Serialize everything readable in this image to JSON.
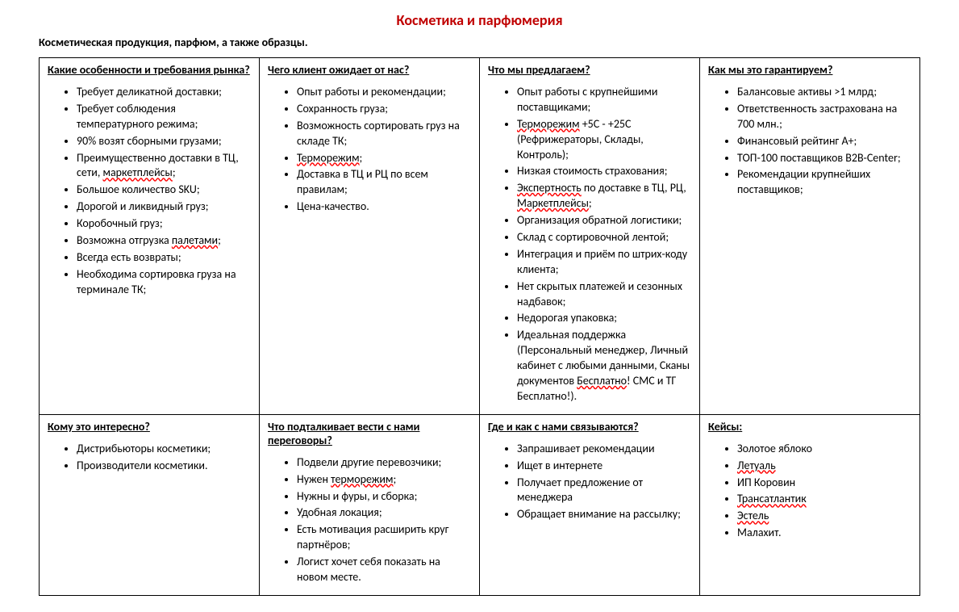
{
  "title": "Косметика и парфюмерия",
  "subtitle": "Косметическая продукция, парфюм, а также образцы.",
  "colors": {
    "title": "#c00000",
    "border": "#000000",
    "text": "#000000",
    "spellcheck_underline": "#ff0000"
  },
  "table": {
    "rows": [
      {
        "cells": [
          {
            "header": "Какие особенности и требования рынка?",
            "items": [
              [
                {
                  "t": "Требует деликатной доставки;"
                }
              ],
              [
                {
                  "t": "Требует соблюдения температурного режима;"
                }
              ],
              [
                {
                  "t": "90% возят сборными грузами;"
                }
              ],
              [
                {
                  "t": "Преимущественно доставки в ТЦ, сети, "
                },
                {
                  "t": "маркетплейсы",
                  "spell": true
                },
                {
                  "t": ";"
                }
              ],
              [
                {
                  "t": "Большое количество SKU;"
                }
              ],
              [
                {
                  "t": "Дорогой и ликвидный груз;"
                }
              ],
              [
                {
                  "t": "Коробочный груз;"
                }
              ],
              [
                {
                  "t": "Возможна отгрузка "
                },
                {
                  "t": "палетами",
                  "spell": true
                },
                {
                  "t": ";"
                }
              ],
              [
                {
                  "t": "Всегда есть возвраты;"
                }
              ],
              [
                {
                  "t": "Необходима сортировка груза на терминале ТК;"
                }
              ]
            ]
          },
          {
            "header": "Чего клиент ожидает от нас?",
            "items": [
              [
                {
                  "t": "Опыт работы и рекомендации;"
                }
              ],
              [
                {
                  "t": "Сохранность груза;"
                }
              ],
              [
                {
                  "t": "Возможность сортировать груз на складе ТК;"
                }
              ],
              [
                {
                  "t": "Терморежим",
                  "spell": true
                },
                {
                  "t": ";"
                }
              ],
              [
                {
                  "t": "Доставка в ТЦ и РЦ по всем правилам;"
                }
              ],
              [
                {
                  "t": "Цена-качество."
                }
              ]
            ]
          },
          {
            "header": "Что мы предлагаем?",
            "items": [
              [
                {
                  "t": "Опыт работы с крупнейшими поставщиками;"
                }
              ],
              [
                {
                  "t": "Терморежим",
                  "spell": true
                },
                {
                  "t": " +5С - +25С (Рефрижераторы, Склады, Контроль);"
                }
              ],
              [
                {
                  "t": "Низкая стоимость страхования;"
                }
              ],
              [
                {
                  "t": "Экспертность",
                  "spell": true
                },
                {
                  "t": " по доставке в ТЦ, РЦ, "
                },
                {
                  "t": "Маркетплейсы",
                  "spell": true
                },
                {
                  "t": ";"
                }
              ],
              [
                {
                  "t": "Организация обратной логистики;"
                }
              ],
              [
                {
                  "t": "Склад с сортировочной лентой;"
                }
              ],
              [
                {
                  "t": "Интеграция и приём по штрих-коду клиента;"
                }
              ],
              [
                {
                  "t": "Нет скрытых платежей и сезонных надбавок;"
                }
              ],
              [
                {
                  "t": "Недорогая упаковка;"
                }
              ],
              [
                {
                  "t": "Идеальная поддержка (Персональный менеджер, Личный кабинет с любыми данными, Сканы документов "
                },
                {
                  "t": "Бесплатно",
                  "spell": true
                },
                {
                  "t": "! СМС и ТГ Бесплатно!)."
                }
              ]
            ]
          },
          {
            "header": "Как мы это гарантируем?",
            "items": [
              [
                {
                  "t": "Балансовые активы >1 млрд;"
                }
              ],
              [
                {
                  "t": "Ответственность застрахована на 700 млн.;"
                }
              ],
              [
                {
                  "t": "Финансовый рейтинг А+;"
                }
              ],
              [
                {
                  "t": "ТОП-100 поставщиков B2B-Center;"
                }
              ],
              [
                {
                  "t": "Рекомендации крупнейших поставщиков;"
                }
              ]
            ]
          }
        ]
      },
      {
        "cells": [
          {
            "header": "Кому это интересно?",
            "items": [
              [
                {
                  "t": "Дистрибьюторы косметики;"
                }
              ],
              [
                {
                  "t": "Производители косметики."
                }
              ]
            ]
          },
          {
            "header": "Что подталкивает вести с нами переговоры?",
            "items": [
              [
                {
                  "t": "Подвели другие перевозчики;"
                }
              ],
              [
                {
                  "t": "Нужен "
                },
                {
                  "t": "терморежим",
                  "spell": true
                },
                {
                  "t": ";"
                }
              ],
              [
                {
                  "t": "Нужны и фуры, и сборка;"
                }
              ],
              [
                {
                  "t": "Удобная локация;"
                }
              ],
              [
                {
                  "t": "Есть мотивация расширить круг партнёров;"
                }
              ],
              [
                {
                  "t": "Логист хочет себя показать на новом месте."
                }
              ]
            ]
          },
          {
            "header": "Где и как с нами связываются?",
            "items": [
              [
                {
                  "t": "Запрашивает рекомендации"
                }
              ],
              [
                {
                  "t": "Ищет в интернете"
                }
              ],
              [
                {
                  "t": "Получает предложение от менеджера"
                }
              ],
              [
                {
                  "t": "Обращает внимание на рассылку;"
                }
              ]
            ]
          },
          {
            "header": "Кейсы:",
            "items": [
              [
                {
                  "t": "Золотое яблоко"
                }
              ],
              [
                {
                  "t": "Летуаль",
                  "spell": true
                }
              ],
              [
                {
                  "t": "ИП Коровин"
                }
              ],
              [
                {
                  "t": "Трансатлантик",
                  "spell": true
                }
              ],
              [
                {
                  "t": "Эстель",
                  "spell": true
                }
              ],
              [
                {
                  "t": "Малахит."
                }
              ]
            ]
          }
        ]
      }
    ]
  }
}
